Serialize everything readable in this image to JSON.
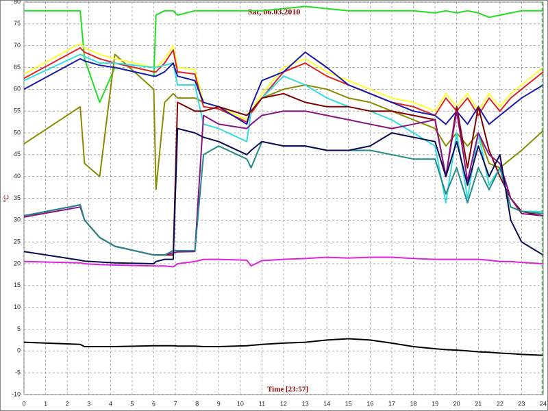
{
  "chart_data": {
    "type": "line",
    "title": "Sat, 06.03.2010",
    "x_label": "Time [23:57]",
    "y_label": "°C",
    "x": [
      0,
      2.6,
      2.8,
      3.5,
      4.2,
      6,
      6.1,
      6.5,
      6.9,
      7.1,
      7.9,
      8.3,
      9,
      10.3,
      10.5,
      11,
      12,
      13,
      14,
      15,
      16,
      17,
      18,
      19,
      19.5,
      20,
      20.5,
      21,
      21.5,
      22,
      22.5,
      23,
      24
    ],
    "series": [
      {
        "color": "#22dd22",
        "values": [
          78,
          78,
          67,
          57,
          65,
          63,
          77,
          78,
          78,
          77,
          78,
          78,
          78,
          78,
          78,
          78,
          78.5,
          79,
          78.5,
          78,
          78,
          78,
          78,
          77.5,
          78,
          77.5,
          78,
          77.5,
          76.5,
          77,
          77.5,
          78,
          78
        ]
      },
      {
        "color": "#8a8a00",
        "values": [
          47.5,
          56,
          43,
          40,
          68,
          60,
          37,
          57,
          59,
          58,
          58,
          57,
          56,
          53,
          55,
          58,
          60,
          61,
          60,
          58,
          57,
          55,
          53,
          51,
          47,
          50,
          47,
          50,
          43,
          42,
          44,
          46,
          50.5
        ]
      },
      {
        "color": "#ffff33",
        "values": [
          63.5,
          70.5,
          69.5,
          68,
          67,
          65,
          65,
          67,
          70,
          65,
          64.5,
          57,
          56,
          53,
          55,
          59,
          65,
          67,
          64,
          62,
          60,
          58,
          57,
          55,
          59,
          56,
          59,
          55,
          59,
          56,
          59,
          61,
          65
        ]
      },
      {
        "color": "#dd2222",
        "values": [
          62.5,
          69.5,
          68.5,
          67,
          66,
          64,
          64,
          66,
          69,
          64,
          63.5,
          56,
          55.5,
          52.5,
          54.5,
          58,
          64,
          66,
          63,
          61,
          59,
          57,
          56,
          54,
          58,
          55,
          58,
          54,
          58,
          55,
          58,
          60,
          64
        ]
      },
      {
        "color": "#33dddd",
        "values": [
          62,
          68,
          67.5,
          66,
          66,
          65,
          65,
          65.5,
          66,
          61,
          61,
          52,
          51,
          48,
          55,
          58,
          63,
          61,
          58,
          56,
          55,
          53,
          50,
          47,
          34,
          50,
          35,
          50,
          38,
          42,
          33,
          32,
          32
        ]
      },
      {
        "color": "#1a1aaa",
        "values": [
          60,
          67,
          66.5,
          65.5,
          65,
          63,
          63,
          64,
          66,
          63,
          62,
          57,
          56,
          52,
          56,
          62,
          64,
          68.5,
          65,
          61,
          59,
          57,
          55,
          54,
          52,
          55,
          52,
          56,
          52,
          54,
          56,
          58,
          61
        ]
      },
      {
        "color": "#800000",
        "values": [
          31,
          33.5,
          30,
          26,
          24,
          22,
          22,
          22,
          22,
          57,
          55,
          55,
          56,
          54,
          55,
          58,
          59,
          57,
          56,
          56,
          55,
          55,
          54,
          53,
          40,
          56,
          42,
          56,
          46,
          40,
          35,
          32,
          31
        ]
      },
      {
        "color": "#881188",
        "values": [
          30.7,
          33,
          30,
          26,
          24,
          22,
          22,
          22,
          22.5,
          22.7,
          22.8,
          54,
          52,
          51,
          52,
          54,
          55,
          55,
          54,
          53,
          52,
          51,
          52,
          53,
          40,
          55,
          39,
          50,
          45,
          43,
          35,
          31.5,
          31
        ]
      },
      {
        "color": "#228888",
        "values": [
          31,
          33.5,
          30,
          26,
          24,
          22,
          22,
          22,
          23,
          23,
          23,
          45,
          47,
          44,
          42,
          48,
          47,
          47,
          46,
          46,
          46,
          45,
          44,
          44,
          36,
          42,
          34,
          42,
          37,
          42,
          33,
          32,
          31.5
        ]
      },
      {
        "color": "#0a0a55",
        "values": [
          22.8,
          20.8,
          20.6,
          20.4,
          20.2,
          20,
          20.5,
          21,
          21,
          51,
          50,
          49,
          48,
          45,
          46,
          48,
          47,
          47,
          46,
          46,
          47,
          50,
          49,
          48,
          40,
          48,
          38,
          47,
          40,
          45,
          30,
          25,
          22
        ]
      },
      {
        "color": "#dd22dd",
        "values": [
          20.5,
          20.2,
          20,
          19.8,
          19.7,
          19.5,
          19.5,
          19.5,
          19.3,
          20,
          20.5,
          21,
          21,
          20.8,
          19.5,
          20.7,
          21,
          21.2,
          21.5,
          21.3,
          21.5,
          21.5,
          21.2,
          21,
          21,
          21,
          21,
          21,
          20.8,
          20.5,
          20.5,
          20.3,
          20
        ]
      },
      {
        "color": "#000000",
        "values": [
          2,
          1.5,
          1,
          1,
          1,
          1.2,
          1.2,
          1.2,
          1.2,
          1.1,
          1.1,
          1,
          1,
          1.2,
          1.3,
          1.5,
          1.8,
          2,
          2.5,
          2.8,
          2.5,
          1.8,
          1,
          0.5,
          0.3,
          0.2,
          0,
          -0.2,
          -0.3,
          -0.5,
          -0.6,
          -0.8,
          -1
        ]
      }
    ],
    "xlim": [
      0,
      24
    ],
    "ylim": [
      -10,
      80
    ],
    "xticks": [
      0,
      1,
      2,
      3,
      4,
      5,
      6,
      7,
      8,
      9,
      10,
      11,
      12,
      13,
      14,
      15,
      16,
      17,
      18,
      19,
      20,
      21,
      22,
      23,
      24
    ],
    "yticks": [
      -10,
      -5,
      0,
      5,
      10,
      15,
      20,
      25,
      30,
      35,
      40,
      45,
      50,
      55,
      60,
      65,
      70,
      75,
      80
    ],
    "grid": true,
    "cursor_x": 23.95
  }
}
